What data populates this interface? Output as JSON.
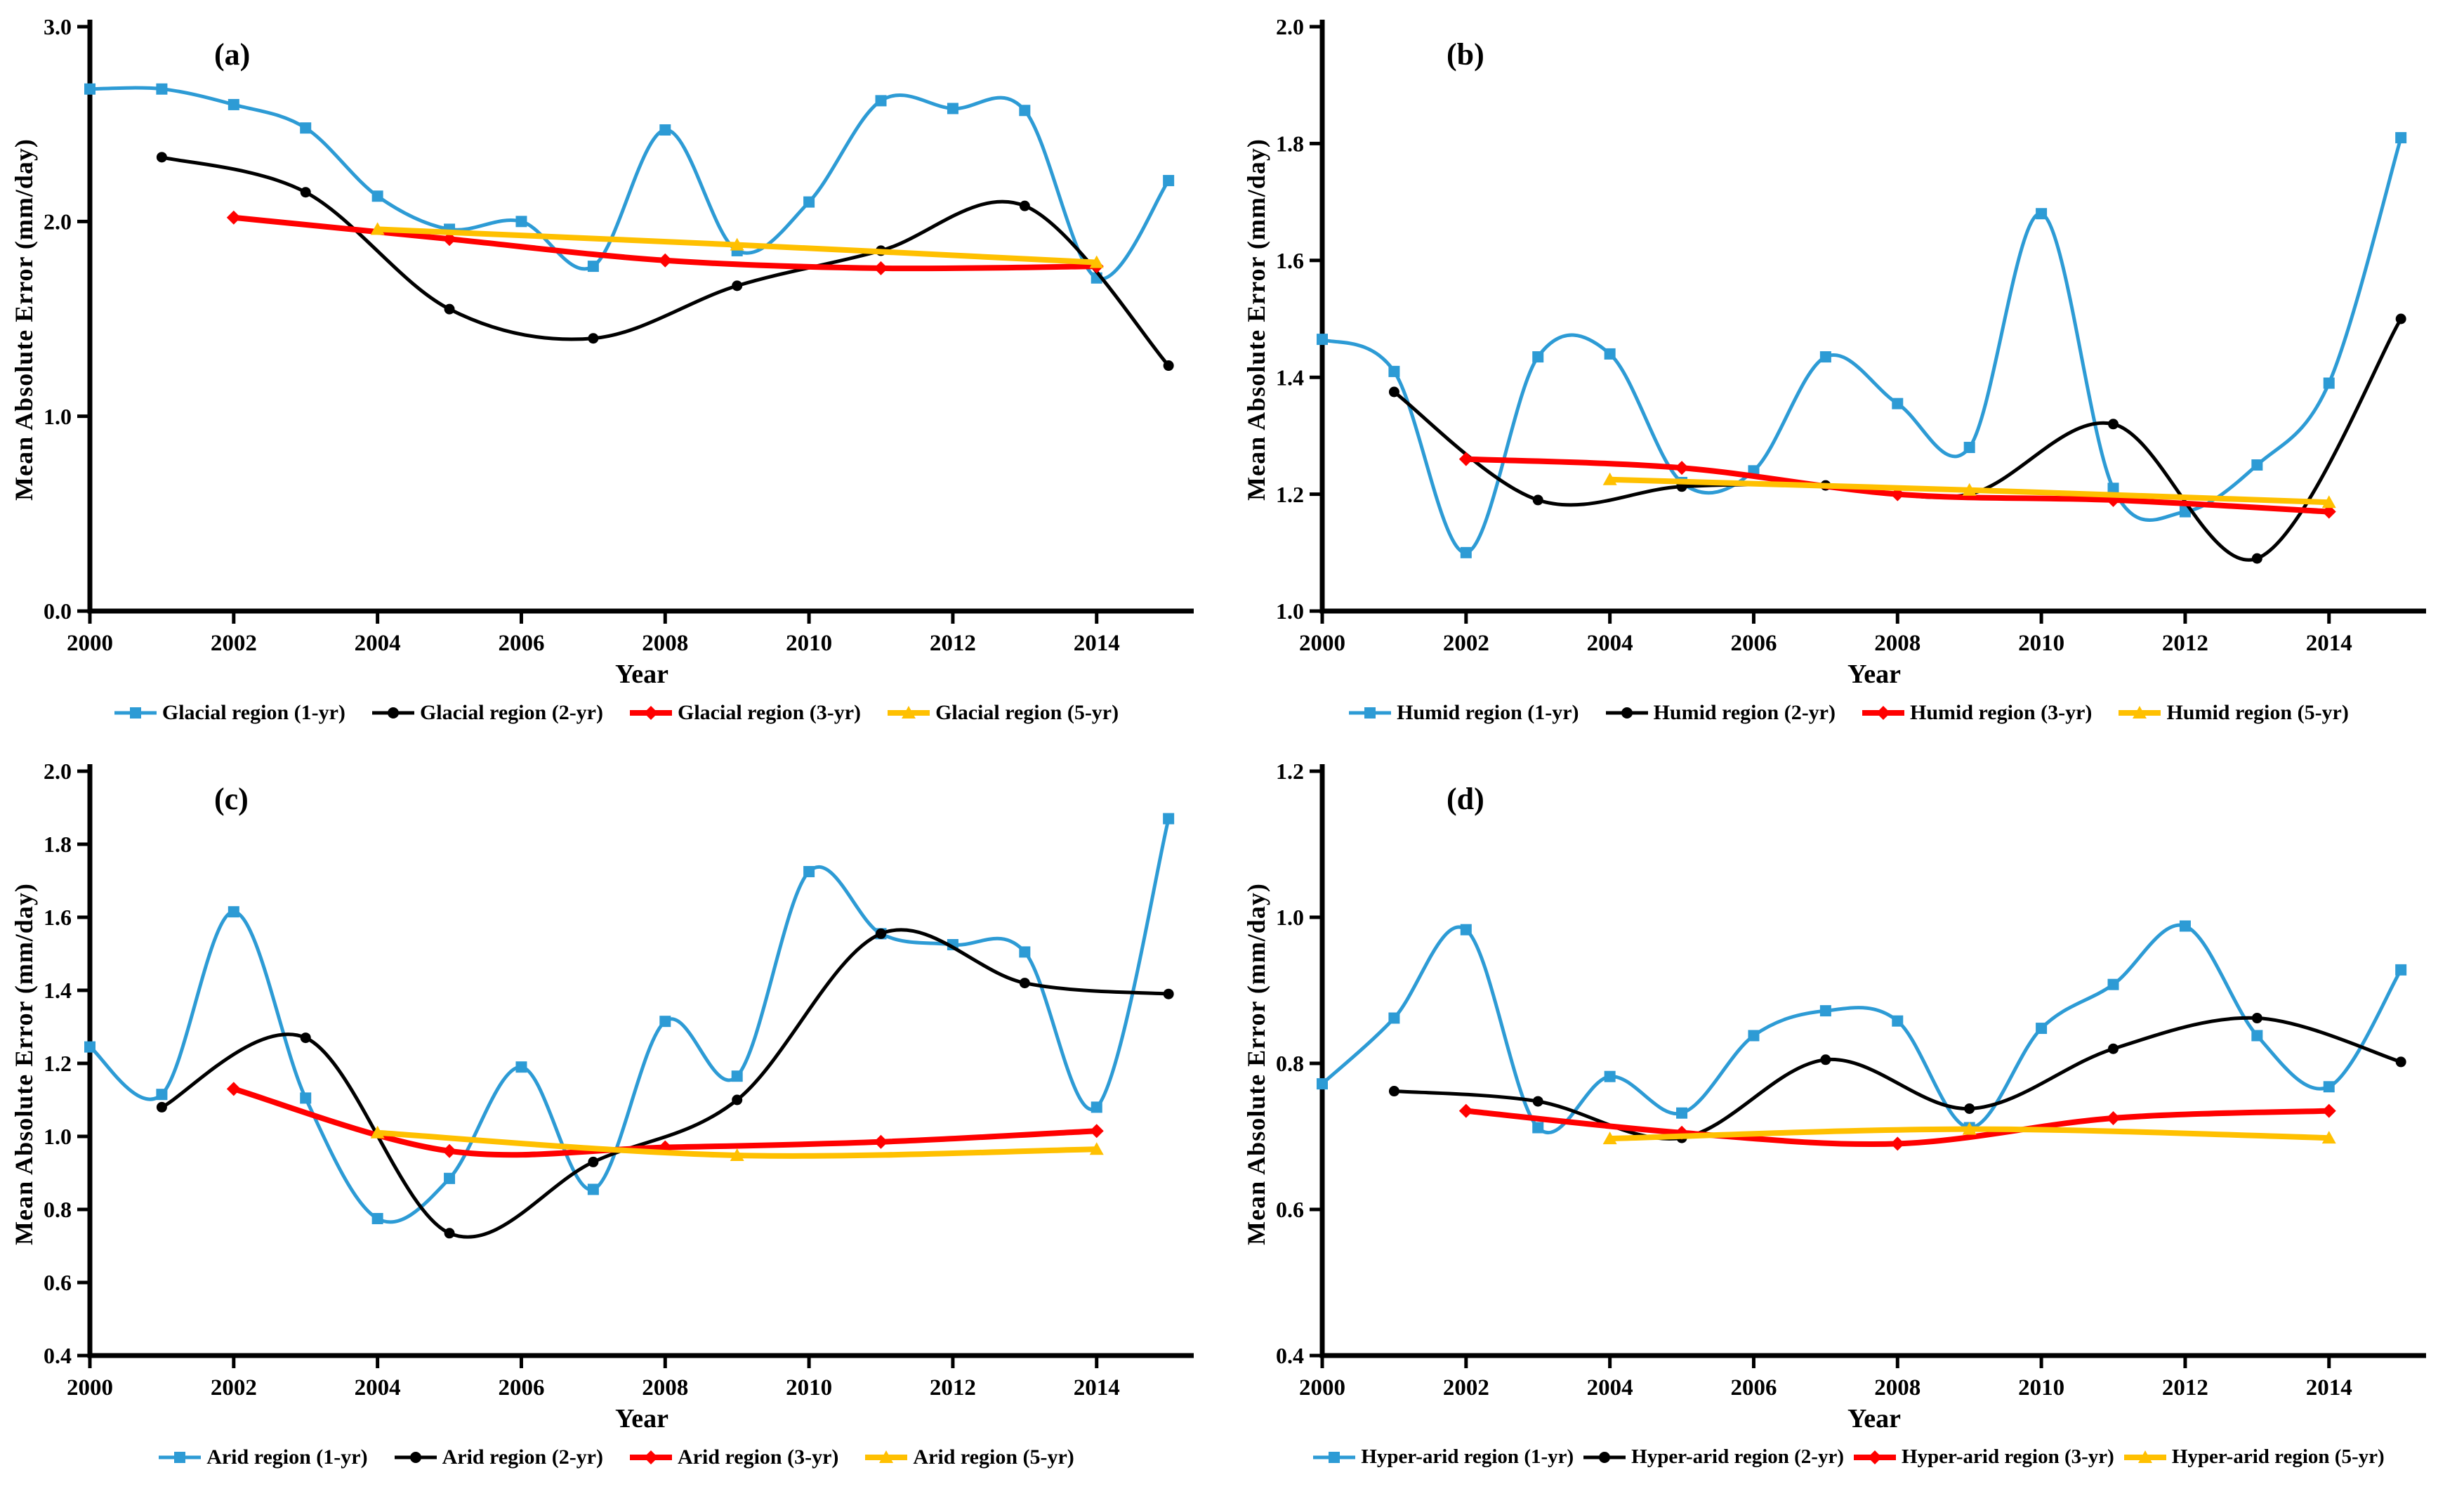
{
  "figure_title": "",
  "accent_colors": {
    "blue": "#2D9BD5",
    "black": "#000000",
    "red": "#FF0000",
    "yellow": "#FFC000"
  },
  "chart_data": [
    {
      "type": "line",
      "letter": "(a)",
      "xlabel": "Year",
      "ylabel": "Mean Absolute Error (mm/day)",
      "xlim": [
        2000,
        2015.35
      ],
      "ylim": [
        0.0,
        3.0
      ],
      "xticks": [
        2000,
        2002,
        2004,
        2006,
        2008,
        2010,
        2012,
        2014
      ],
      "ytick_labels": [
        "0.0",
        "1.0",
        "2.0",
        "3.0"
      ],
      "grid": false,
      "legend_position": "bottom",
      "series": [
        {
          "name": "Glacial region (1-yr)",
          "color": "#2D9BD5",
          "marker": "square",
          "line_width": 5,
          "x": [
            2000,
            2001,
            2002,
            2003,
            2004,
            2005,
            2006,
            2007,
            2008,
            2009,
            2010,
            2011,
            2012,
            2013,
            2014,
            2015
          ],
          "y": [
            2.68,
            2.68,
            2.6,
            2.48,
            2.13,
            1.96,
            2.0,
            1.77,
            2.47,
            1.85,
            2.1,
            2.62,
            2.58,
            2.57,
            1.71,
            2.21
          ]
        },
        {
          "name": "Glacial region (2-yr)",
          "color": "#000000",
          "marker": "circle",
          "line_width": 5,
          "x": [
            2001,
            2003,
            2005,
            2007,
            2009,
            2011,
            2013,
            2015
          ],
          "y": [
            2.33,
            2.15,
            1.55,
            1.4,
            1.67,
            1.85,
            2.08,
            1.26
          ]
        },
        {
          "name": "Glacial region (3-yr)",
          "color": "#FF0000",
          "marker": "diamond",
          "line_width": 8,
          "x": [
            2002,
            2005,
            2008,
            2011,
            2014
          ],
          "y": [
            2.02,
            1.91,
            1.8,
            1.76,
            1.77
          ]
        },
        {
          "name": "Glacial region (5-yr)",
          "color": "#FFC000",
          "marker": "triangle",
          "line_width": 8,
          "x": [
            2004,
            2009,
            2014
          ],
          "y": [
            1.96,
            1.88,
            1.79
          ]
        }
      ]
    },
    {
      "type": "line",
      "letter": "(b)",
      "xlabel": "Year",
      "ylabel": "Mean Absolute Error (mm/day)",
      "xlim": [
        2000,
        2015.35
      ],
      "ylim": [
        1.0,
        2.0
      ],
      "xticks": [
        2000,
        2002,
        2004,
        2006,
        2008,
        2010,
        2012,
        2014
      ],
      "ytick_labels": [
        "1.0",
        "1.2",
        "1.4",
        "1.6",
        "1.8",
        "2.0"
      ],
      "grid": false,
      "legend_position": "bottom",
      "series": [
        {
          "name": "Humid region (1-yr)",
          "color": "#2D9BD5",
          "marker": "square",
          "line_width": 5,
          "x": [
            2000,
            2001,
            2002,
            2003,
            2004,
            2005,
            2006,
            2007,
            2008,
            2009,
            2010,
            2011,
            2012,
            2013,
            2014,
            2015
          ],
          "y": [
            1.465,
            1.41,
            1.1,
            1.435,
            1.44,
            1.22,
            1.24,
            1.435,
            1.355,
            1.28,
            1.68,
            1.21,
            1.17,
            1.25,
            1.39,
            1.81
          ]
        },
        {
          "name": "Humid region (2-yr)",
          "color": "#000000",
          "marker": "circle",
          "line_width": 5,
          "x": [
            2001,
            2003,
            2005,
            2007,
            2009,
            2011,
            2013,
            2015
          ],
          "y": [
            1.375,
            1.19,
            1.213,
            1.215,
            1.2,
            1.32,
            1.09,
            1.5
          ]
        },
        {
          "name": "Humid region (3-yr)",
          "color": "#FF0000",
          "marker": "diamond",
          "line_width": 8,
          "x": [
            2002,
            2005,
            2008,
            2011,
            2014
          ],
          "y": [
            1.26,
            1.245,
            1.2,
            1.19,
            1.17
          ]
        },
        {
          "name": "Humid region (5-yr)",
          "color": "#FFC000",
          "marker": "triangle",
          "line_width": 8,
          "x": [
            2004,
            2009,
            2014
          ],
          "y": [
            1.225,
            1.207,
            1.186
          ]
        }
      ]
    },
    {
      "type": "line",
      "letter": "(c)",
      "xlabel": "Year",
      "ylabel": "Mean Absolute Error (mm/day)",
      "xlim": [
        2000,
        2015.35
      ],
      "ylim": [
        0.4,
        2.0
      ],
      "xticks": [
        2000,
        2002,
        2004,
        2006,
        2008,
        2010,
        2012,
        2014
      ],
      "ytick_labels": [
        "0.4",
        "0.6",
        "0.8",
        "1.0",
        "1.2",
        "1.4",
        "1.6",
        "1.8",
        "2.0"
      ],
      "grid": false,
      "legend_position": "bottom",
      "series": [
        {
          "name": "Arid region (1-yr)",
          "color": "#2D9BD5",
          "marker": "square",
          "line_width": 5,
          "x": [
            2000,
            2001,
            2002,
            2003,
            2004,
            2005,
            2006,
            2007,
            2008,
            2009,
            2010,
            2011,
            2012,
            2013,
            2014,
            2015
          ],
          "y": [
            1.245,
            1.115,
            1.615,
            1.105,
            0.775,
            0.885,
            1.19,
            0.855,
            1.315,
            1.165,
            1.725,
            1.555,
            1.525,
            1.505,
            1.08,
            1.87
          ]
        },
        {
          "name": "Arid region (2-yr)",
          "color": "#000000",
          "marker": "circle",
          "line_width": 5,
          "x": [
            2001,
            2003,
            2005,
            2007,
            2009,
            2011,
            2013,
            2015
          ],
          "y": [
            1.08,
            1.27,
            0.735,
            0.93,
            1.1,
            1.555,
            1.42,
            1.39
          ]
        },
        {
          "name": "Arid region (3-yr)",
          "color": "#FF0000",
          "marker": "diamond",
          "line_width": 8,
          "x": [
            2002,
            2005,
            2008,
            2011,
            2014
          ],
          "y": [
            1.13,
            0.96,
            0.97,
            0.985,
            1.015
          ]
        },
        {
          "name": "Arid region (5-yr)",
          "color": "#FFC000",
          "marker": "triangle",
          "line_width": 8,
          "x": [
            2004,
            2009,
            2014
          ],
          "y": [
            1.01,
            0.948,
            0.965
          ]
        }
      ]
    },
    {
      "type": "line",
      "letter": "(d)",
      "xlabel": "Year",
      "ylabel": "Mean Absolute Error (mm/day)",
      "xlim": [
        2000,
        2015.35
      ],
      "ylim": [
        0.4,
        1.2
      ],
      "xticks": [
        2000,
        2002,
        2004,
        2006,
        2008,
        2010,
        2012,
        2014
      ],
      "ytick_labels": [
        "0.4",
        "0.6",
        "0.8",
        "1.0",
        "1.2"
      ],
      "grid": false,
      "legend_position": "bottom",
      "series": [
        {
          "name": "Hyper-arid region (1-yr)",
          "color": "#2D9BD5",
          "marker": "square",
          "line_width": 5,
          "x": [
            2000,
            2001,
            2002,
            2003,
            2004,
            2005,
            2006,
            2007,
            2008,
            2009,
            2010,
            2011,
            2012,
            2013,
            2014,
            2015
          ],
          "y": [
            0.772,
            0.862,
            0.983,
            0.712,
            0.782,
            0.732,
            0.838,
            0.872,
            0.858,
            0.712,
            0.848,
            0.908,
            0.988,
            0.838,
            0.768,
            0.928
          ]
        },
        {
          "name": "Hyper-arid region (2-yr)",
          "color": "#000000",
          "marker": "circle",
          "line_width": 5,
          "x": [
            2001,
            2003,
            2005,
            2007,
            2009,
            2011,
            2013,
            2015
          ],
          "y": [
            0.762,
            0.748,
            0.698,
            0.805,
            0.738,
            0.82,
            0.862,
            0.802
          ]
        },
        {
          "name": "Hyper-arid region (3-yr)",
          "color": "#FF0000",
          "marker": "diamond",
          "line_width": 8,
          "x": [
            2002,
            2005,
            2008,
            2011,
            2014
          ],
          "y": [
            0.735,
            0.705,
            0.69,
            0.725,
            0.735
          ]
        },
        {
          "name": "Hyper-arid region (5-yr)",
          "color": "#FFC000",
          "marker": "triangle",
          "line_width": 8,
          "x": [
            2004,
            2009,
            2014
          ],
          "y": [
            0.697,
            0.71,
            0.698
          ]
        }
      ]
    }
  ]
}
